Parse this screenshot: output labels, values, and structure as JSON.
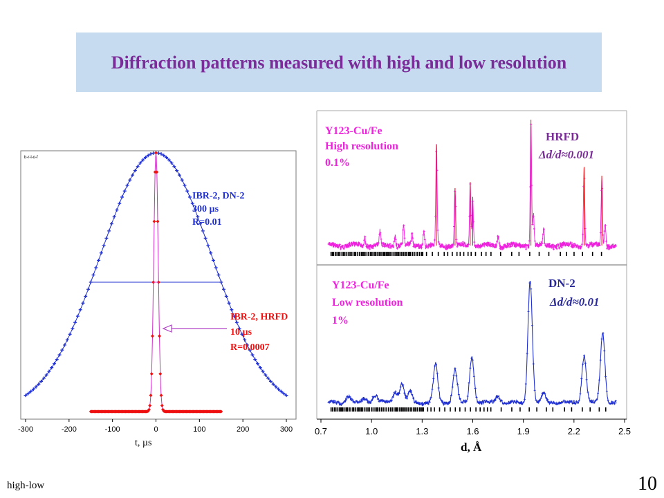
{
  "title": "Diffraction patterns measured with high and low resolution",
  "footer": {
    "label": "high-low",
    "page_number": "10"
  },
  "colors": {
    "title_bg": "#c6dbef",
    "title_text": "#7a2c98",
    "blue": "#1f2fd0",
    "red": "#ee1111",
    "magenta": "#ee22dd",
    "violet": "#b040c8"
  },
  "chart_data": [
    {
      "type": "line",
      "title": "",
      "corner_label": "b-r-l-o-f",
      "xlabel": "t, µs",
      "ylabel": "",
      "xlim": [
        -300,
        300
      ],
      "x_ticks": [
        "-300",
        "-200",
        "-100",
        "0",
        "100",
        "200",
        "300"
      ],
      "series": [
        {
          "legend": [
            "IBR-2, DN-2",
            "300 µs",
            "R=0.01"
          ],
          "color": "#1f2fd0",
          "shape": "gaussian",
          "center": 0,
          "fwhm": 300,
          "x_range": [
            -300,
            300
          ],
          "peak": 1.0
        },
        {
          "legend": [
            "IBR-2, HRFD",
            "10 µs",
            "R=0.0007"
          ],
          "color": "#ee1111",
          "shape": "gaussian",
          "center": 0,
          "fwhm": 12,
          "x_range": [
            -150,
            150
          ],
          "peak": 1.0
        }
      ]
    },
    {
      "type": "line",
      "title": "",
      "xlabel": "d, Å",
      "xlim": [
        0.7,
        2.5
      ],
      "x_ticks": [
        "0.7",
        "1.0",
        "1.3",
        "1.6",
        "1.9",
        "2.2",
        "2.5"
      ],
      "panels": [
        {
          "sample_label": [
            "Y123-Cu/Fe",
            "High resolution",
            "0.1%"
          ],
          "instrument": "HRFD",
          "resolution": "Δd/d≈0.001",
          "color": "#ee22dd",
          "width": 0.004,
          "peaks": [
            {
              "d": 0.96,
              "h": 0.08
            },
            {
              "d": 1.05,
              "h": 0.12
            },
            {
              "d": 1.14,
              "h": 0.08
            },
            {
              "d": 1.19,
              "h": 0.15
            },
            {
              "d": 1.24,
              "h": 0.09
            },
            {
              "d": 1.31,
              "h": 0.12
            },
            {
              "d": 1.385,
              "h": 0.8
            },
            {
              "d": 1.495,
              "h": 0.45
            },
            {
              "d": 1.585,
              "h": 0.5
            },
            {
              "d": 1.6,
              "h": 0.38
            },
            {
              "d": 1.75,
              "h": 0.08
            },
            {
              "d": 1.945,
              "h": 1.0
            },
            {
              "d": 1.96,
              "h": 0.25
            },
            {
              "d": 2.02,
              "h": 0.12
            },
            {
              "d": 2.26,
              "h": 0.62
            },
            {
              "d": 2.365,
              "h": 0.55
            },
            {
              "d": 2.385,
              "h": 0.18
            }
          ]
        },
        {
          "sample_label": [
            "Y123-Cu/Fe",
            "Low resolution",
            "1%"
          ],
          "instrument": "DN-2",
          "resolution": "Δd/d≈0.01",
          "color": "#1f2fd0",
          "width": 0.013,
          "peaks": [
            {
              "d": 0.86,
              "h": 0.05
            },
            {
              "d": 0.96,
              "h": 0.04
            },
            {
              "d": 1.02,
              "h": 0.06
            },
            {
              "d": 1.14,
              "h": 0.09
            },
            {
              "d": 1.18,
              "h": 0.15
            },
            {
              "d": 1.23,
              "h": 0.09
            },
            {
              "d": 1.38,
              "h": 0.31
            },
            {
              "d": 1.495,
              "h": 0.27
            },
            {
              "d": 1.595,
              "h": 0.37
            },
            {
              "d": 1.75,
              "h": 0.06
            },
            {
              "d": 1.94,
              "h": 1.0
            },
            {
              "d": 2.02,
              "h": 0.07
            },
            {
              "d": 2.26,
              "h": 0.38
            },
            {
              "d": 2.37,
              "h": 0.57
            }
          ]
        }
      ]
    }
  ]
}
